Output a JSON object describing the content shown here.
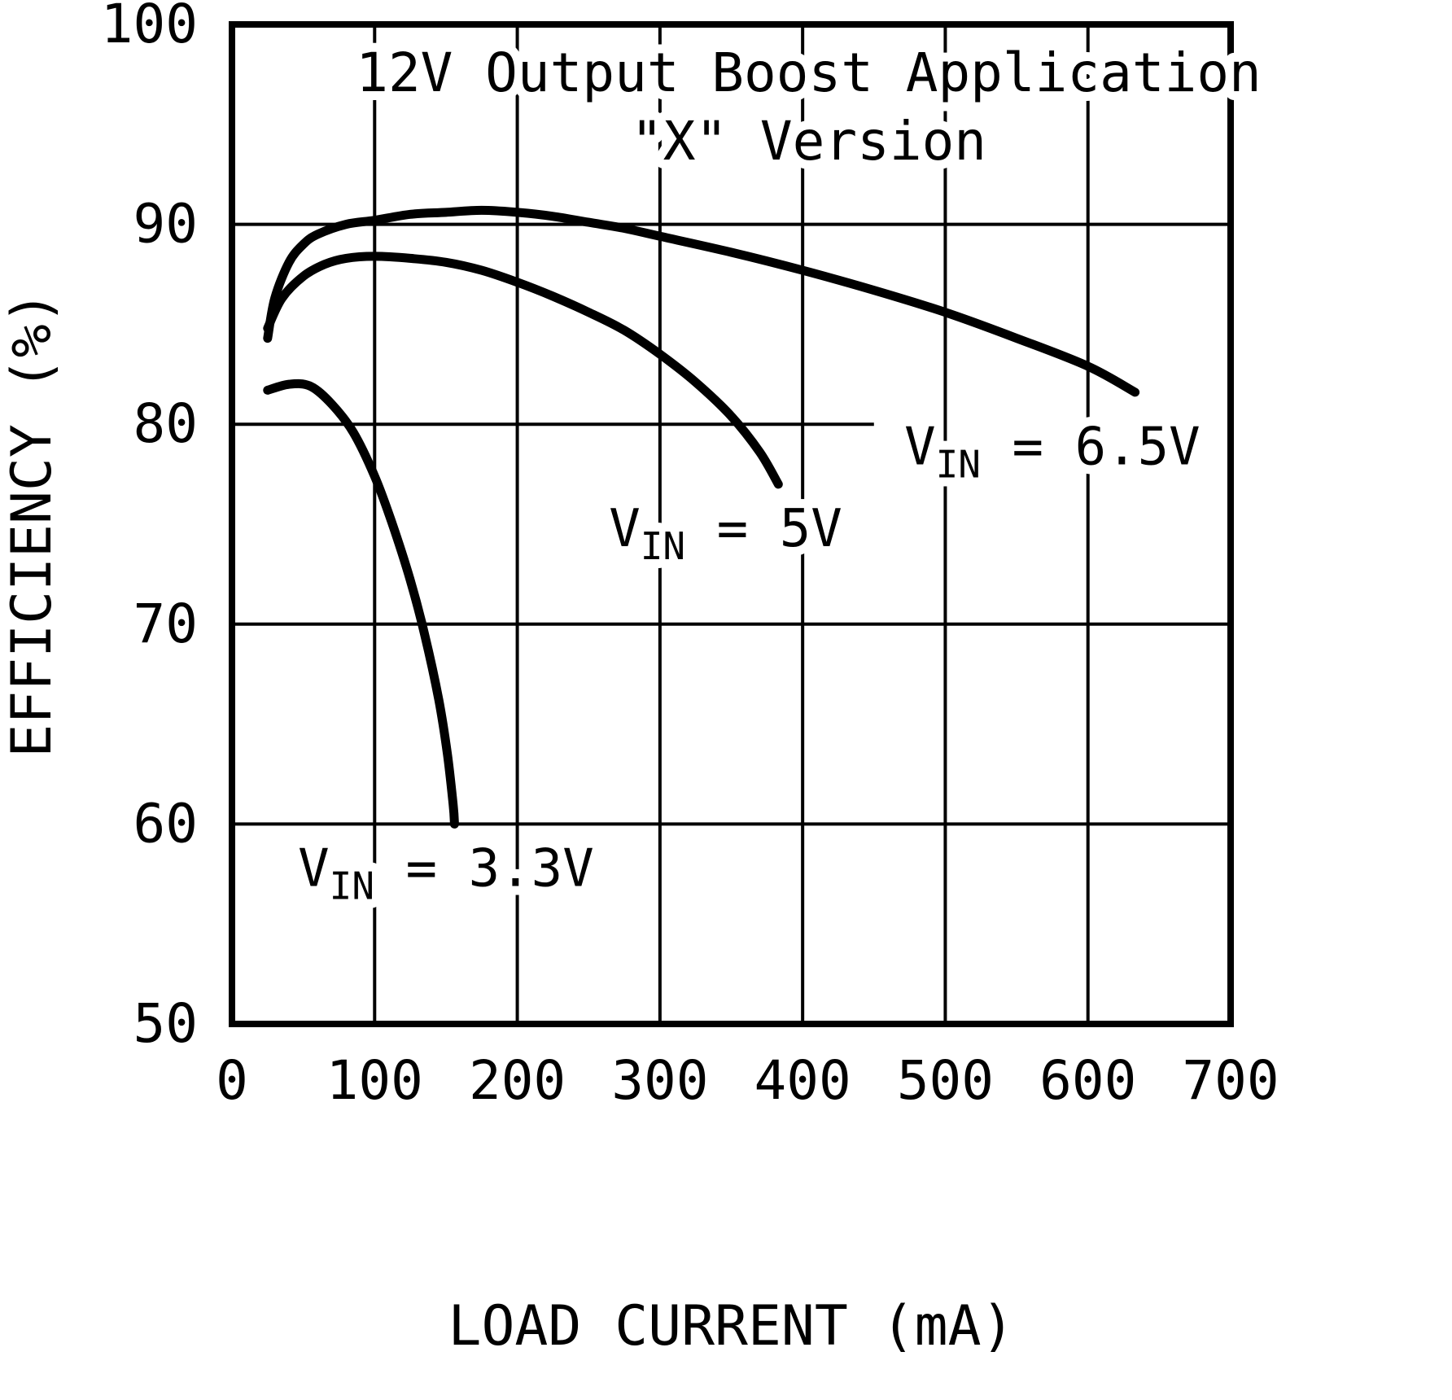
{
  "chart_data": {
    "type": "line",
    "title": "12V Output Boost Application",
    "subtitle": "\"X\" Version",
    "xlabel": "LOAD CURRENT (mA)",
    "ylabel": "EFFICIENCY (%)",
    "xlim": [
      0,
      700
    ],
    "ylim": [
      50,
      100
    ],
    "x_ticks": [
      0,
      100,
      200,
      300,
      400,
      500,
      600,
      700
    ],
    "y_ticks": [
      100,
      90,
      80,
      70,
      60,
      50
    ],
    "x_gridlines": [
      100,
      200,
      300,
      400,
      500,
      600
    ],
    "y_gridlines": [
      {
        "v": 90
      },
      {
        "v": 80,
        "x_end": 450
      },
      {
        "v": 70
      },
      {
        "v": 60
      }
    ],
    "grid": true,
    "legend_position": "inline-annotations",
    "line_color": "#000000",
    "background": "#ffffff",
    "series": [
      {
        "name": "VIN = 6.5V",
        "label": {
          "pre": "V",
          "sub": "IN",
          "post": " = 6.5V",
          "x": 575,
          "y": 78.0
        },
        "points": [
          [
            25,
            84.3
          ],
          [
            30,
            86.3
          ],
          [
            40,
            88.1
          ],
          [
            50,
            89.0
          ],
          [
            60,
            89.5
          ],
          [
            80,
            90.0
          ],
          [
            100,
            90.2
          ],
          [
            125,
            90.5
          ],
          [
            150,
            90.6
          ],
          [
            175,
            90.7
          ],
          [
            200,
            90.6
          ],
          [
            225,
            90.4
          ],
          [
            250,
            90.1
          ],
          [
            275,
            89.8
          ],
          [
            300,
            89.4
          ],
          [
            350,
            88.6
          ],
          [
            400,
            87.7
          ],
          [
            450,
            86.7
          ],
          [
            500,
            85.6
          ],
          [
            550,
            84.3
          ],
          [
            600,
            82.9
          ],
          [
            633,
            81.6
          ]
        ]
      },
      {
        "name": "VIN = 5V",
        "label": {
          "pre": "V",
          "sub": "IN",
          "post": " = 5V",
          "x": 346,
          "y": 73.9
        },
        "points": [
          [
            25,
            84.8
          ],
          [
            35,
            86.3
          ],
          [
            50,
            87.4
          ],
          [
            65,
            88.0
          ],
          [
            80,
            88.3
          ],
          [
            100,
            88.4
          ],
          [
            125,
            88.3
          ],
          [
            150,
            88.1
          ],
          [
            175,
            87.7
          ],
          [
            200,
            87.1
          ],
          [
            225,
            86.4
          ],
          [
            250,
            85.6
          ],
          [
            275,
            84.7
          ],
          [
            300,
            83.5
          ],
          [
            325,
            82.1
          ],
          [
            350,
            80.4
          ],
          [
            370,
            78.6
          ],
          [
            383,
            77.0
          ]
        ]
      },
      {
        "name": "VIN = 3.3V",
        "label": {
          "pre": "V",
          "sub": "IN",
          "post": " = 3.3V",
          "x": 150,
          "y": 56.9
        },
        "points": [
          [
            25,
            81.7
          ],
          [
            40,
            82.0
          ],
          [
            55,
            81.9
          ],
          [
            70,
            81.0
          ],
          [
            85,
            79.6
          ],
          [
            100,
            77.4
          ],
          [
            112,
            75.1
          ],
          [
            125,
            72.2
          ],
          [
            135,
            69.5
          ],
          [
            145,
            66.2
          ],
          [
            151,
            63.5
          ],
          [
            155,
            61.0
          ],
          [
            156,
            60.0
          ]
        ]
      }
    ]
  }
}
